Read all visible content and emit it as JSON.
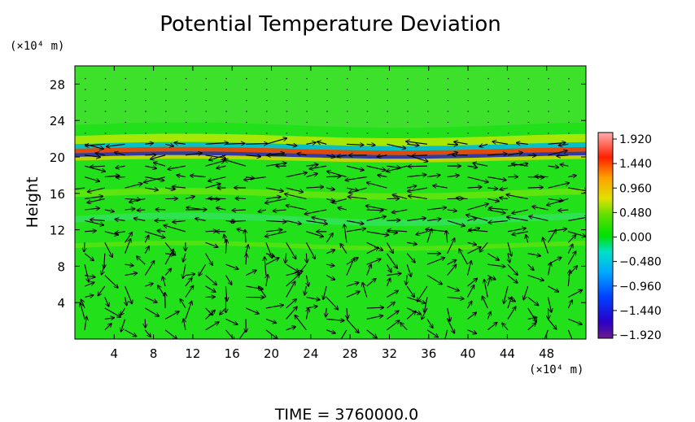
{
  "chart_data": {
    "type": "heatmap",
    "title": "Potential Temperature Deviation",
    "ylabel": "Height",
    "y_unit": "(×10⁴ m)",
    "x_unit": "(×10⁴ m)",
    "xlim": [
      0,
      52
    ],
    "ylim": [
      0,
      30
    ],
    "x_ticks": [
      4,
      8,
      12,
      16,
      20,
      24,
      28,
      32,
      36,
      40,
      44,
      48
    ],
    "y_ticks": [
      4,
      8,
      12,
      16,
      20,
      24,
      28
    ],
    "colorbar": {
      "ticks": [
        "1.920",
        "1.440",
        "0.960",
        "0.480",
        "0.000",
        "−0.480",
        "−0.960",
        "−1.440",
        "−1.920"
      ],
      "range": [
        -1.92,
        1.92
      ]
    },
    "field_description": "mostly near-zero (green) with strong positive/negative banding near height 20, weaker bands near 16 and 12",
    "vectors": "wind vector overlay arrows",
    "footer": "TIME = 3760000.0"
  }
}
